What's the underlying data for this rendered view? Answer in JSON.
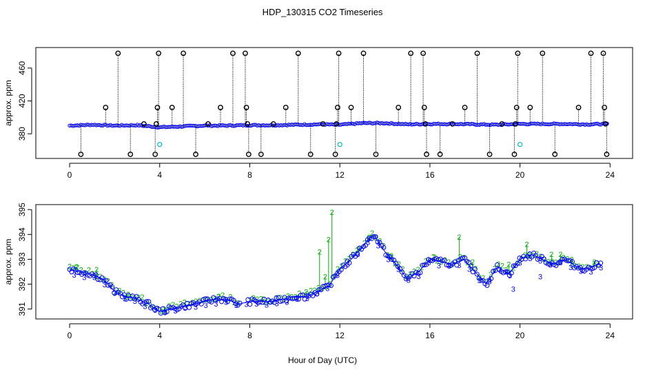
{
  "title": "HDP_130315  CO2 Timeseries",
  "xlabel": "Hour of Day (UTC)",
  "colors": {
    "spike": "#000000",
    "flag1": "#00bfbf",
    "series": "#0000ff",
    "flag2": "#00b000"
  },
  "chart_data": [
    {
      "type": "scatter",
      "panel": "top",
      "ylabel": "approx. ppm",
      "xlim": [
        -1.5,
        25
      ],
      "ylim": [
        350,
        485
      ],
      "x_ticks": [
        "0",
        "4",
        "8",
        "12",
        "16",
        "20",
        "24"
      ],
      "y_ticks": [
        "380",
        "420",
        "460"
      ],
      "baseline_points": [
        {
          "x": 0,
          "y": 390
        },
        {
          "x": 1,
          "y": 391
        },
        {
          "x": 2,
          "y": 390
        },
        {
          "x": 3,
          "y": 390.5
        },
        {
          "x": 4,
          "y": 388
        },
        {
          "x": 5,
          "y": 389
        },
        {
          "x": 6,
          "y": 390
        },
        {
          "x": 7,
          "y": 390
        },
        {
          "x": 8,
          "y": 390.5
        },
        {
          "x": 9,
          "y": 390.5
        },
        {
          "x": 10,
          "y": 391
        },
        {
          "x": 11,
          "y": 391.5
        },
        {
          "x": 12,
          "y": 391
        },
        {
          "x": 13,
          "y": 393
        },
        {
          "x": 14,
          "y": 393
        },
        {
          "x": 15,
          "y": 391.5
        },
        {
          "x": 16,
          "y": 392
        },
        {
          "x": 17,
          "y": 392
        },
        {
          "x": 18,
          "y": 391.5
        },
        {
          "x": 19,
          "y": 391
        },
        {
          "x": 20,
          "y": 392
        },
        {
          "x": 21,
          "y": 392
        },
        {
          "x": 22,
          "y": 392
        },
        {
          "x": 23,
          "y": 391.5
        },
        {
          "x": 23.8,
          "y": 392
        }
      ],
      "spikes": [
        {
          "x": 0.5,
          "y": 355
        },
        {
          "x": 1.6,
          "y": 412
        },
        {
          "x": 2.15,
          "y": 478
        },
        {
          "x": 2.7,
          "y": 355
        },
        {
          "x": 3.3,
          "y": 392
        },
        {
          "x": 3.8,
          "y": 355
        },
        {
          "x": 3.85,
          "y": 392
        },
        {
          "x": 3.9,
          "y": 412
        },
        {
          "x": 3.95,
          "y": 478
        },
        {
          "x": 4.55,
          "y": 412
        },
        {
          "x": 5.05,
          "y": 478
        },
        {
          "x": 5.6,
          "y": 355
        },
        {
          "x": 6.15,
          "y": 392
        },
        {
          "x": 6.7,
          "y": 412
        },
        {
          "x": 7.25,
          "y": 478
        },
        {
          "x": 7.8,
          "y": 478
        },
        {
          "x": 7.85,
          "y": 412
        },
        {
          "x": 7.9,
          "y": 392
        },
        {
          "x": 7.95,
          "y": 355
        },
        {
          "x": 8.5,
          "y": 355
        },
        {
          "x": 9.05,
          "y": 392
        },
        {
          "x": 9.6,
          "y": 412
        },
        {
          "x": 10.15,
          "y": 478
        },
        {
          "x": 10.7,
          "y": 355
        },
        {
          "x": 11.25,
          "y": 392
        },
        {
          "x": 11.8,
          "y": 355
        },
        {
          "x": 11.85,
          "y": 392
        },
        {
          "x": 11.9,
          "y": 412
        },
        {
          "x": 11.95,
          "y": 478
        },
        {
          "x": 12.5,
          "y": 412
        },
        {
          "x": 13.05,
          "y": 478
        },
        {
          "x": 13.6,
          "y": 355
        },
        {
          "x": 14.6,
          "y": 412
        },
        {
          "x": 15.15,
          "y": 478
        },
        {
          "x": 15.7,
          "y": 478
        },
        {
          "x": 15.75,
          "y": 412
        },
        {
          "x": 15.8,
          "y": 392
        },
        {
          "x": 15.85,
          "y": 355
        },
        {
          "x": 16.45,
          "y": 355
        },
        {
          "x": 17,
          "y": 392
        },
        {
          "x": 17.55,
          "y": 412
        },
        {
          "x": 18.1,
          "y": 478
        },
        {
          "x": 18.65,
          "y": 355
        },
        {
          "x": 19.2,
          "y": 392
        },
        {
          "x": 19.75,
          "y": 355
        },
        {
          "x": 19.8,
          "y": 392
        },
        {
          "x": 19.85,
          "y": 412
        },
        {
          "x": 19.9,
          "y": 478
        },
        {
          "x": 20.45,
          "y": 412
        },
        {
          "x": 21,
          "y": 478
        },
        {
          "x": 21.55,
          "y": 355
        },
        {
          "x": 22.6,
          "y": 412
        },
        {
          "x": 23.15,
          "y": 478
        },
        {
          "x": 23.7,
          "y": 478
        },
        {
          "x": 23.75,
          "y": 412
        },
        {
          "x": 23.8,
          "y": 392
        },
        {
          "x": 23.85,
          "y": 355
        }
      ],
      "flagged_points": [
        {
          "x": 4.0,
          "y": 367
        },
        {
          "x": 12.0,
          "y": 367
        },
        {
          "x": 20.0,
          "y": 367
        }
      ]
    },
    {
      "type": "scatter",
      "panel": "bottom",
      "ylabel": "approx. ppm",
      "xlim": [
        -1.5,
        25
      ],
      "ylim": [
        390.6,
        395.2
      ],
      "x_ticks": [
        "0",
        "4",
        "8",
        "12",
        "16",
        "20",
        "24"
      ],
      "y_ticks": [
        "391",
        "392",
        "393",
        "394",
        "395"
      ],
      "marker_labels": {
        "series": "3",
        "flag": "2"
      },
      "series_points": [
        {
          "x": 0,
          "y": 392.6
        },
        {
          "x": 0.5,
          "y": 392.5
        },
        {
          "x": 1,
          "y": 392.4
        },
        {
          "x": 1.5,
          "y": 392.2
        },
        {
          "x": 2,
          "y": 391.7
        },
        {
          "x": 2.5,
          "y": 391.5
        },
        {
          "x": 3,
          "y": 391.4
        },
        {
          "x": 3.5,
          "y": 391.2
        },
        {
          "x": 4,
          "y": 390.9
        },
        {
          "x": 4.5,
          "y": 391
        },
        {
          "x": 5,
          "y": 391.1
        },
        {
          "x": 5.5,
          "y": 391.2
        },
        {
          "x": 6,
          "y": 391.3
        },
        {
          "x": 6.5,
          "y": 391.4
        },
        {
          "x": 7,
          "y": 391.4
        },
        {
          "x": 7.5,
          "y": 391.2
        },
        {
          "x": 8,
          "y": 391.3
        },
        {
          "x": 8.5,
          "y": 391.3
        },
        {
          "x": 9,
          "y": 391.3
        },
        {
          "x": 9.5,
          "y": 391.4
        },
        {
          "x": 10,
          "y": 391.5
        },
        {
          "x": 10.5,
          "y": 391.5
        },
        {
          "x": 11,
          "y": 391.7
        },
        {
          "x": 11.5,
          "y": 391.9
        },
        {
          "x": 12,
          "y": 392.6
        },
        {
          "x": 12.5,
          "y": 393
        },
        {
          "x": 13,
          "y": 393.5
        },
        {
          "x": 13.5,
          "y": 394
        },
        {
          "x": 14,
          "y": 393.3
        },
        {
          "x": 14.5,
          "y": 392.8
        },
        {
          "x": 15,
          "y": 392.2
        },
        {
          "x": 15.5,
          "y": 392.5
        },
        {
          "x": 16,
          "y": 393
        },
        {
          "x": 16.5,
          "y": 392.9
        },
        {
          "x": 17,
          "y": 392.8
        },
        {
          "x": 17.5,
          "y": 393
        },
        {
          "x": 18,
          "y": 392.5
        },
        {
          "x": 18.5,
          "y": 392
        },
        {
          "x": 19,
          "y": 392.7
        },
        {
          "x": 19.5,
          "y": 392.4
        },
        {
          "x": 20,
          "y": 393
        },
        {
          "x": 20.5,
          "y": 393.2
        },
        {
          "x": 21,
          "y": 393
        },
        {
          "x": 21.5,
          "y": 392.8
        },
        {
          "x": 22,
          "y": 393
        },
        {
          "x": 22.5,
          "y": 392.7
        },
        {
          "x": 23,
          "y": 392.6
        },
        {
          "x": 23.5,
          "y": 392.8
        }
      ],
      "flag_points": [
        {
          "x": 0.3,
          "y": 392.7
        },
        {
          "x": 1.2,
          "y": 392.6
        },
        {
          "x": 2.6,
          "y": 391.6
        },
        {
          "x": 4.2,
          "y": 391
        },
        {
          "x": 6.6,
          "y": 391.5
        },
        {
          "x": 8.6,
          "y": 391.4
        },
        {
          "x": 10.5,
          "y": 391.7
        },
        {
          "x": 11.1,
          "y": 393.3
        },
        {
          "x": 11.35,
          "y": 392.3
        },
        {
          "x": 11.5,
          "y": 393.8
        },
        {
          "x": 11.65,
          "y": 394.9
        },
        {
          "x": 12.8,
          "y": 393.4
        },
        {
          "x": 13.3,
          "y": 393.9
        },
        {
          "x": 14.3,
          "y": 393.1
        },
        {
          "x": 16.2,
          "y": 393.1
        },
        {
          "x": 17.3,
          "y": 393.9
        },
        {
          "x": 17.9,
          "y": 392.9
        },
        {
          "x": 19.5,
          "y": 392.8
        },
        {
          "x": 20.3,
          "y": 393.6
        },
        {
          "x": 21.4,
          "y": 393.2
        },
        {
          "x": 21.8,
          "y": 393.2
        },
        {
          "x": 22.3,
          "y": 393
        },
        {
          "x": 23.3,
          "y": 392.9
        }
      ],
      "outliers": [
        {
          "x": 19.7,
          "y": 391.8
        },
        {
          "x": 19.4,
          "y": 392.5
        },
        {
          "x": 20.9,
          "y": 392.3
        }
      ]
    }
  ]
}
